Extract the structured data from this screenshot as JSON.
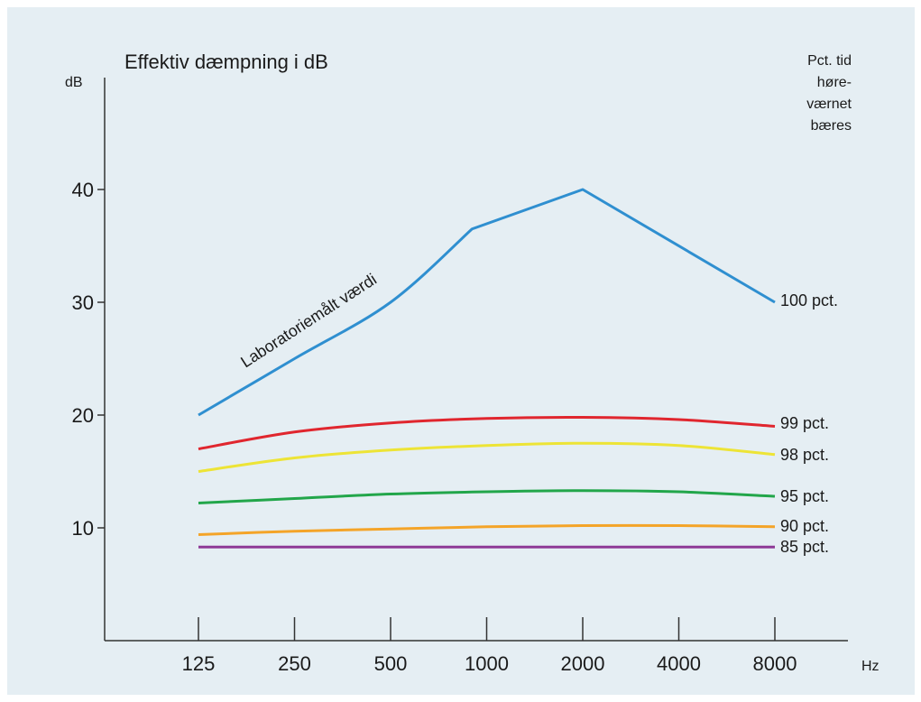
{
  "chart_data": {
    "type": "line",
    "title": "Effektiv dæmpning i dB",
    "ylabel": "dB",
    "xlabel": "Hz",
    "categories": [
      "125",
      "250",
      "500",
      "1000",
      "2000",
      "4000",
      "8000"
    ],
    "ylim": [
      0,
      50
    ],
    "yticks": [
      "10",
      "20",
      "30",
      "40"
    ],
    "legend_title": [
      "Pct. tid",
      "høre-",
      "værnet",
      "bæres"
    ],
    "annotation": "Laboratoriemålt værdi",
    "series": [
      {
        "name": "100 pct.",
        "color": "#2f8fd0",
        "x": [
          125,
          250,
          500,
          900,
          2000,
          8000
        ],
        "values": [
          20,
          25,
          30,
          36.5,
          40,
          30
        ]
      },
      {
        "name": "99 pct.",
        "color": "#e0262e",
        "x": [
          125,
          250,
          500,
          1000,
          2000,
          4000,
          8000
        ],
        "values": [
          17,
          18.5,
          19.3,
          19.7,
          19.8,
          19.6,
          19
        ]
      },
      {
        "name": "98 pct.",
        "color": "#ede436",
        "x": [
          125,
          250,
          500,
          1000,
          2000,
          4000,
          8000
        ],
        "values": [
          15,
          16.2,
          16.9,
          17.3,
          17.5,
          17.3,
          16.5
        ]
      },
      {
        "name": "95 pct.",
        "color": "#22a64a",
        "x": [
          125,
          250,
          500,
          1000,
          2000,
          4000,
          8000
        ],
        "values": [
          12.2,
          12.6,
          13,
          13.2,
          13.3,
          13.2,
          12.8
        ]
      },
      {
        "name": "90 pct.",
        "color": "#f4a428",
        "x": [
          125,
          250,
          500,
          1000,
          2000,
          4000,
          8000
        ],
        "values": [
          9.4,
          9.7,
          9.9,
          10.1,
          10.2,
          10.2,
          10.1
        ]
      },
      {
        "name": "85 pct.",
        "color": "#8e3a96",
        "x": [
          125,
          250,
          500,
          1000,
          2000,
          4000,
          8000
        ],
        "values": [
          8.3,
          8.3,
          8.3,
          8.3,
          8.3,
          8.3,
          8.3
        ]
      }
    ]
  }
}
